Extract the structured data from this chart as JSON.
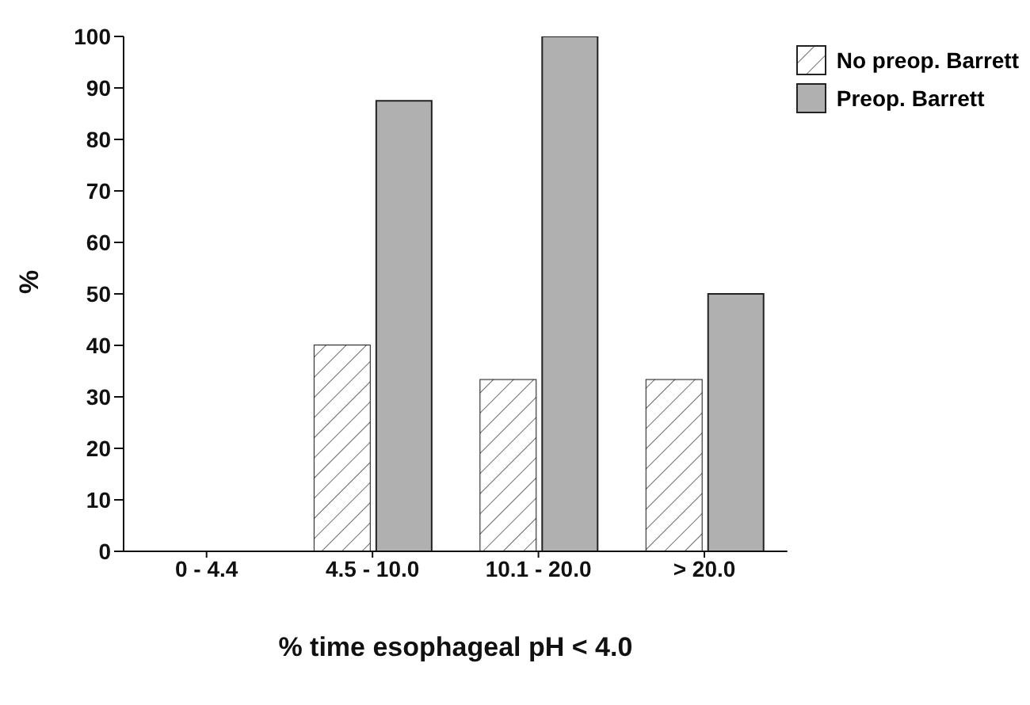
{
  "chart_data": {
    "type": "bar",
    "xlabel": "% time esophageal pH < 4.0",
    "ylabel": "%",
    "categories": [
      "0 - 4.4",
      "4.5 - 10.0",
      "10.1 - 20.0",
      "> 20.0"
    ],
    "series": [
      {
        "name": "No preop. Barrett",
        "color": "#ffffff",
        "values": [
          0,
          40,
          33.3,
          33.3
        ]
      },
      {
        "name": "Preop. Barrett",
        "color": "#b0b0b0",
        "values": [
          0,
          87.5,
          100,
          50
        ]
      }
    ],
    "ylim": [
      0,
      100
    ],
    "yticks": [
      0,
      10,
      20,
      30,
      40,
      50,
      60,
      70,
      80,
      90,
      100
    ],
    "grid": false,
    "legend": "top right"
  }
}
